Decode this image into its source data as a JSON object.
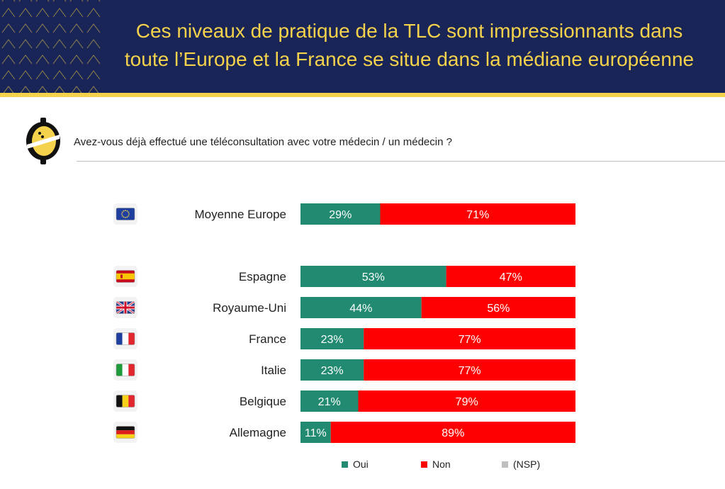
{
  "header": {
    "title_line1": "Ces niveaux de pratique de la TLC sont impressionnants dans",
    "title_line2": "toute l’Europe et la France se situe dans la médiane européenne"
  },
  "question": "Avez-vous déjà effectué une téléconsultation avec votre médecin / un médecin ?",
  "colors": {
    "header_bg": "#1a2557",
    "accent": "#f4d24b",
    "oui": "#218a70",
    "non": "#ff0000",
    "nsp": "#bfbfbf"
  },
  "chart_data": {
    "type": "bar",
    "orientation": "horizontal",
    "stacked": true,
    "percent_labels": true,
    "categories": [
      "Moyenne Europe",
      "Espagne",
      "Royaume-Uni",
      "France",
      "Italie",
      "Belgique",
      "Allemagne"
    ],
    "flags": [
      "eu-flag-icon",
      "spain-flag-icon",
      "uk-flag-icon",
      "france-flag-icon",
      "italy-flag-icon",
      "belgium-flag-icon",
      "germany-flag-icon"
    ],
    "series": [
      {
        "name": "Oui",
        "color": "#218a70",
        "values": [
          29,
          53,
          44,
          23,
          23,
          21,
          11
        ]
      },
      {
        "name": "Non",
        "color": "#ff0000",
        "values": [
          71,
          47,
          56,
          77,
          77,
          79,
          89
        ]
      }
    ],
    "legend": [
      {
        "name": "Oui",
        "color": "#218a70"
      },
      {
        "name": "Non",
        "color": "#ff0000"
      },
      {
        "name": "(NSP)",
        "color": "#bfbfbf"
      }
    ],
    "legend_position": "bottom",
    "xlim": [
      0,
      100
    ],
    "grid": false
  }
}
